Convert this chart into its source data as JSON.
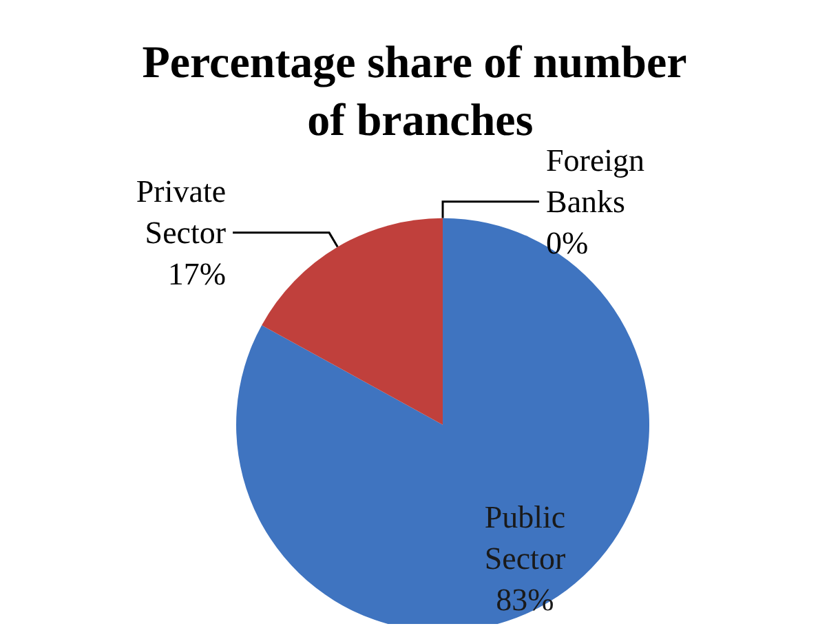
{
  "chart_data": {
    "type": "pie",
    "title": "Percentage share of number of branches",
    "categories": [
      "Public Sector",
      "Private Sector",
      "Foreign Banks"
    ],
    "values": [
      83,
      17,
      0
    ],
    "value_labels": [
      "83%",
      "17%",
      "0%"
    ],
    "colors": [
      "#3f74c0",
      "#c0403c",
      "#9bbb59"
    ],
    "legend": false
  }
}
